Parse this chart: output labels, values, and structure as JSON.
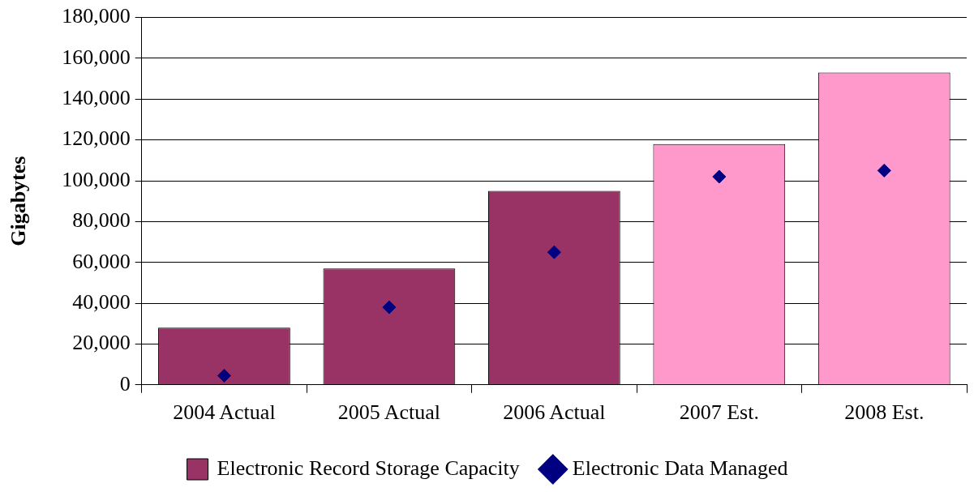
{
  "chart_data": {
    "type": "bar",
    "ylabel": "Gigabytes",
    "categories": [
      "2004 Actual",
      "2005 Actual",
      "2006 Actual",
      "2007 Est.",
      "2008 Est."
    ],
    "series": [
      {
        "name": "Electronic Record Storage Capacity",
        "colors": [
          "#993366",
          "#993366",
          "#993366",
          "#ff99cc",
          "#ff99cc"
        ],
        "values": [
          28000,
          57000,
          95000,
          118000,
          153000
        ]
      },
      {
        "name": "Electronic Data Managed",
        "type": "scatter",
        "color": "#000080",
        "marker": "diamond",
        "values": [
          4500,
          38000,
          65000,
          102000,
          105000
        ]
      }
    ],
    "ylim": [
      0,
      180000
    ],
    "yticks": [
      {
        "value": 0,
        "label": "0"
      },
      {
        "value": 20000,
        "label": "20,000"
      },
      {
        "value": 40000,
        "label": "40,000"
      },
      {
        "value": 60000,
        "label": "60,000"
      },
      {
        "value": 80000,
        "label": "80,000"
      },
      {
        "value": 100000,
        "label": "100,000"
      },
      {
        "value": 120000,
        "label": "120,000"
      },
      {
        "value": 140000,
        "label": "140,000"
      },
      {
        "value": 160000,
        "label": "160,000"
      },
      {
        "value": 180000,
        "label": "180,000"
      }
    ],
    "grid": "y",
    "legend": "bottom"
  }
}
